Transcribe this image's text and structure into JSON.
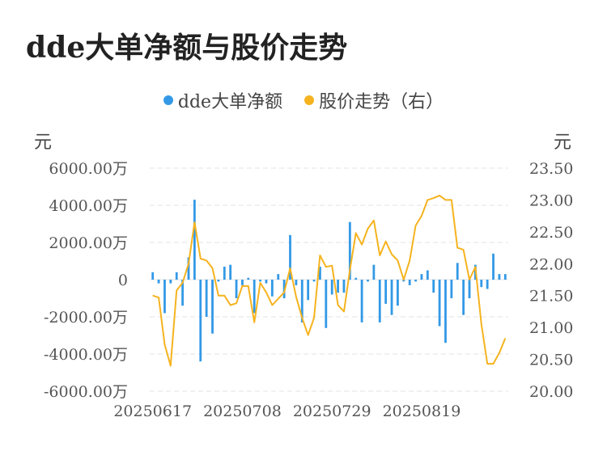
{
  "title": "dde大单净额与股价走势",
  "legend": [
    {
      "name": "dde大单净额",
      "color": "#3399e6"
    },
    {
      "name": "股价走势（右）",
      "color": "#f5b31f"
    }
  ],
  "left_unit": "元",
  "right_unit": "元",
  "chart_data": {
    "type": "bar",
    "title": "dde大单净额与股价走势",
    "x_tick_labels": [
      "20250617",
      "20250708",
      "20250729",
      "20250819"
    ],
    "y_left": {
      "ticks": [
        6000,
        4000,
        2000,
        0,
        -2000,
        -4000,
        -6000
      ],
      "tick_labels": [
        "6000.00万",
        "4000.00万",
        "2000.00万",
        "0",
        "-2000.00万",
        "-4000.00万",
        "-6000.00万"
      ],
      "ylim": [
        -6000,
        6000
      ]
    },
    "y_right": {
      "ticks": [
        23.5,
        23.0,
        22.5,
        22.0,
        21.5,
        21.0,
        20.5,
        20.0
      ],
      "tick_labels": [
        "23.50",
        "23.00",
        "22.50",
        "22.00",
        "21.50",
        "21.00",
        "20.50",
        "20.00"
      ],
      "ylim": [
        20.0,
        23.5
      ]
    },
    "grid": true,
    "legend_position": "top",
    "series": [
      {
        "name": "dde大单净额",
        "type": "bar",
        "axis": "left",
        "color": "#3399e6",
        "values": [
          400,
          -200,
          -1800,
          -200,
          400,
          -1400,
          1200,
          4300,
          -4400,
          -2000,
          -2900,
          -100,
          700,
          800,
          -1000,
          -300,
          100,
          -1800,
          -100,
          -200,
          -900,
          300,
          -1000,
          2400,
          -300,
          -2300,
          -1100,
          -100,
          700,
          -2600,
          -800,
          -700,
          -700,
          3100,
          100,
          -2300,
          -100,
          800,
          -2300,
          -1300,
          -1900,
          -1400,
          -100,
          -300,
          -100,
          300,
          500,
          -700,
          -2500,
          -3400,
          -1000,
          900,
          -1900,
          -1000,
          800,
          -400,
          -500,
          1400,
          300,
          300
        ]
      },
      {
        "name": "股价走势（右）",
        "type": "line",
        "axis": "right",
        "color": "#f5b31f",
        "values": [
          21.5,
          21.47,
          20.73,
          20.4,
          21.58,
          21.7,
          22.0,
          22.65,
          22.08,
          22.05,
          21.93,
          21.5,
          21.5,
          21.35,
          21.38,
          21.65,
          21.65,
          21.08,
          21.7,
          21.55,
          21.35,
          21.45,
          21.55,
          21.93,
          21.48,
          21.15,
          20.88,
          21.15,
          22.13,
          21.95,
          21.97,
          21.35,
          21.25,
          21.9,
          22.48,
          22.3,
          22.55,
          22.68,
          22.13,
          22.35,
          22.15,
          22.05,
          21.75,
          22.05,
          22.6,
          22.75,
          23.0,
          23.03,
          23.07,
          23.0,
          23.0,
          22.25,
          22.22,
          21.75,
          21.95,
          21.05,
          20.43,
          20.43,
          20.6,
          20.83
        ]
      }
    ]
  }
}
